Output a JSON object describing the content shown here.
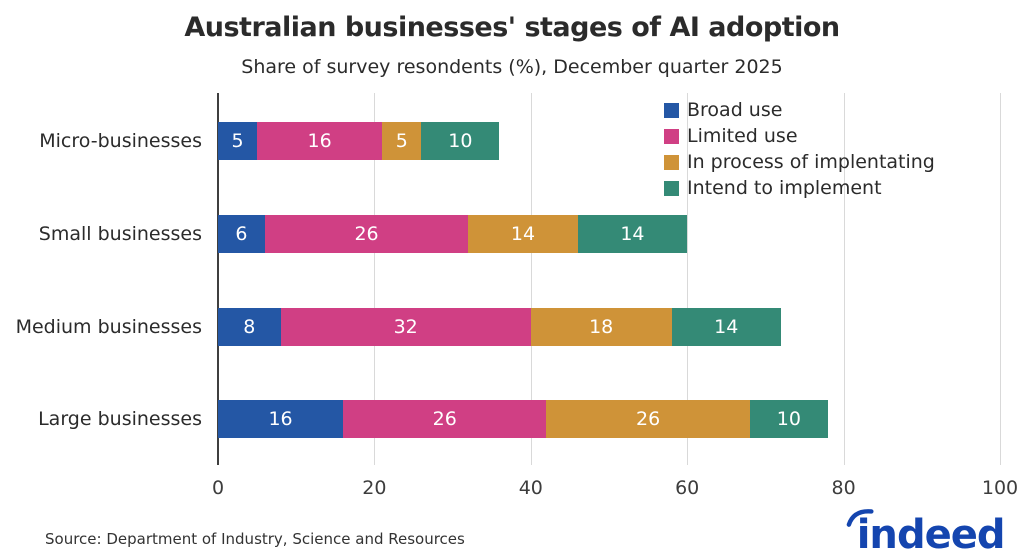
{
  "header": {
    "title": "Australian businesses' stages of AI adoption",
    "subtitle": "Share of survey resondents (%), December quarter 2025"
  },
  "footer": {
    "source": "Source: Department of Industry, Science and Resources",
    "logo_text": "indeed",
    "logo_color": "#1445af"
  },
  "colors": {
    "grid": "#d9d9d9",
    "zero_axis": "#3f3f3f",
    "text": "#2b2b2b",
    "bar_value_label": "#ffffff"
  },
  "chart_data": {
    "type": "bar",
    "orientation": "horizontal",
    "stacked": true,
    "title": "Australian businesses' stages of AI adoption",
    "subtitle": "Share of survey resondents (%), December quarter 2025",
    "categories": [
      "Micro-businesses",
      "Small businesses",
      "Medium businesses",
      "Large businesses"
    ],
    "series": [
      {
        "name": "Broad use",
        "color": "#2457a5",
        "values": [
          5,
          6,
          8,
          16
        ]
      },
      {
        "name": "Limited use",
        "color": "#d03f84",
        "values": [
          16,
          26,
          32,
          26
        ]
      },
      {
        "name": "In process of implentating",
        "color": "#cf9338",
        "values": [
          5,
          14,
          18,
          26
        ]
      },
      {
        "name": "Intend to implement",
        "color": "#348a76",
        "values": [
          10,
          14,
          14,
          10
        ]
      }
    ],
    "totals": [
      36,
      60,
      72,
      78
    ],
    "xlabel": "",
    "ylabel": "",
    "xlim": [
      0,
      100
    ],
    "xticks": [
      0,
      20,
      40,
      60,
      80,
      100
    ],
    "grid": true,
    "legend_position": "top-right"
  }
}
